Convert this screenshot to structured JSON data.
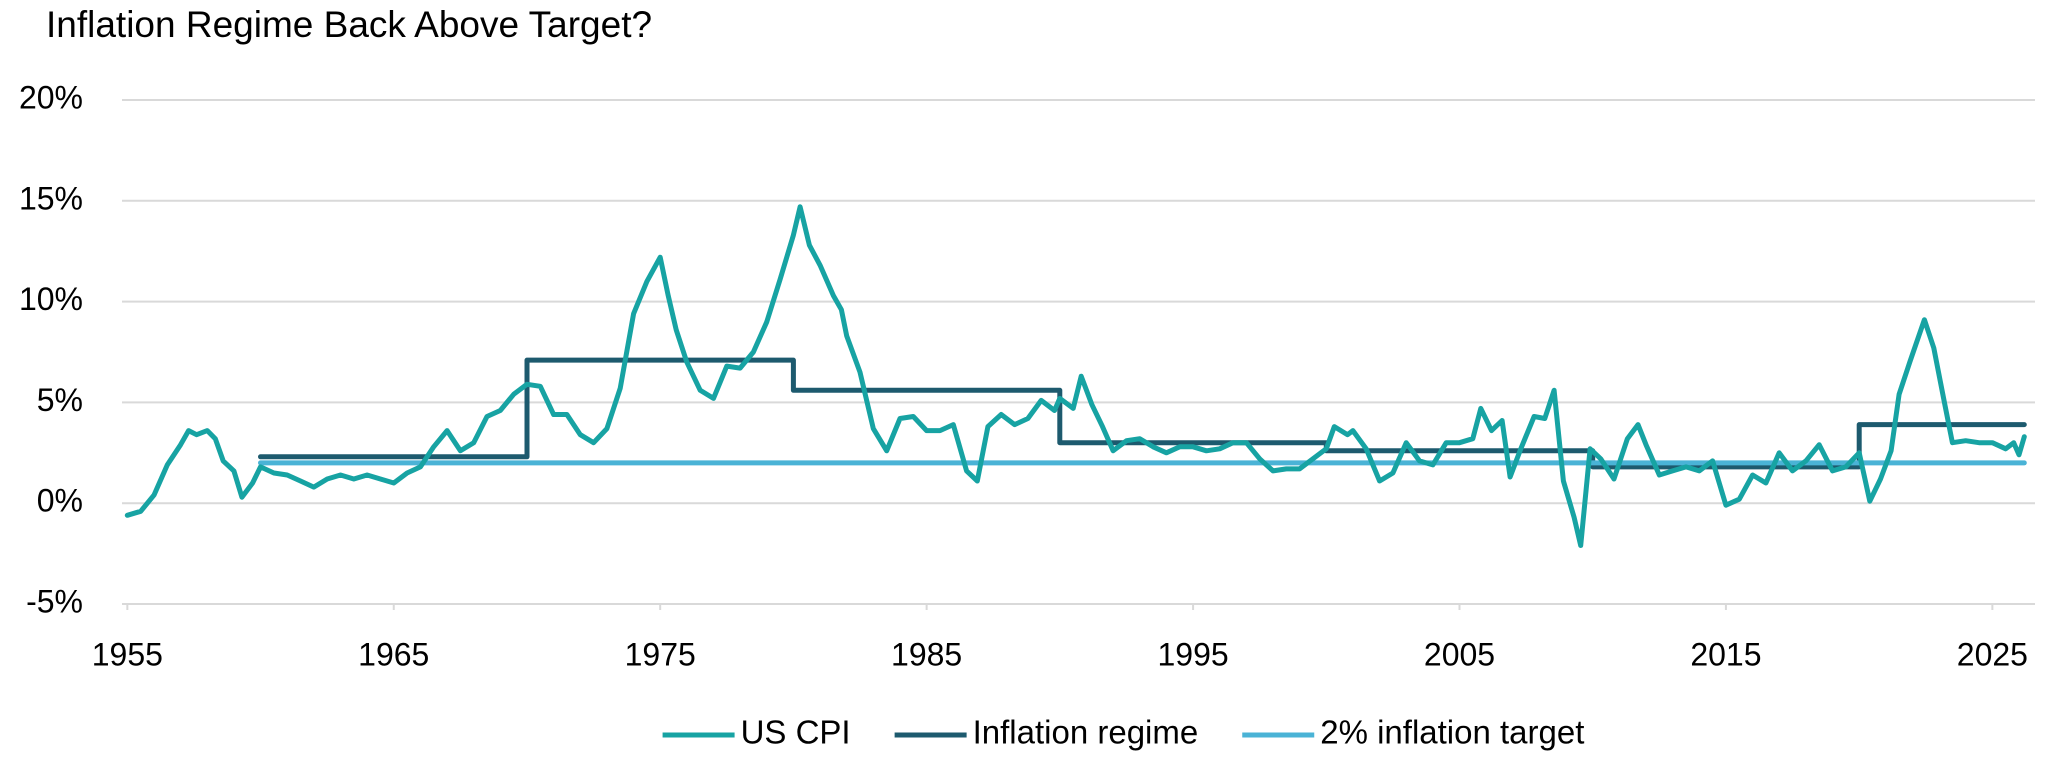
{
  "chart_data": {
    "type": "line",
    "title": "Inflation Regime Back Above Target?",
    "xlim": [
      1954.8,
      2026.6
    ],
    "xticks": [
      1955,
      1965,
      1975,
      1985,
      1995,
      2005,
      2015,
      2025
    ],
    "ylim": [
      -5,
      20
    ],
    "yticks": [
      {
        "value": -5,
        "label": "-5%"
      },
      {
        "value": 0,
        "label": "0%"
      },
      {
        "value": 5,
        "label": "5%"
      },
      {
        "value": 10,
        "label": "10%"
      },
      {
        "value": 15,
        "label": "15%"
      },
      {
        "value": 20,
        "label": "20%"
      }
    ],
    "grid": true,
    "legend": "bottom",
    "series": [
      {
        "name": "US CPI",
        "color": "#17a3a3",
        "x": [
          1955.0,
          1955.5,
          1956.0,
          1956.5,
          1957.0,
          1957.3,
          1957.6,
          1958.0,
          1958.3,
          1958.6,
          1959.0,
          1959.3,
          1959.7,
          1960.0,
          1960.5,
          1961.0,
          1961.5,
          1962.0,
          1962.5,
          1963.0,
          1963.5,
          1964.0,
          1964.5,
          1965.0,
          1965.5,
          1966.0,
          1966.5,
          1967.0,
          1967.5,
          1968.0,
          1968.5,
          1969.0,
          1969.5,
          1970.0,
          1970.5,
          1971.0,
          1971.5,
          1972.0,
          1972.5,
          1973.0,
          1973.5,
          1974.0,
          1974.5,
          1975.0,
          1975.3,
          1975.6,
          1976.0,
          1976.5,
          1977.0,
          1977.5,
          1978.0,
          1978.5,
          1979.0,
          1979.5,
          1980.0,
          1980.25,
          1980.6,
          1981.0,
          1981.5,
          1981.8,
          1982.0,
          1982.5,
          1983.0,
          1983.5,
          1984.0,
          1984.5,
          1985.0,
          1985.5,
          1986.0,
          1986.5,
          1986.9,
          1987.3,
          1987.8,
          1988.3,
          1988.8,
          1989.3,
          1989.8,
          1990.0,
          1990.5,
          1990.8,
          1991.2,
          1991.6,
          1992.0,
          1992.5,
          1993.0,
          1993.5,
          1994.0,
          1994.5,
          1995.0,
          1995.5,
          1996.0,
          1996.5,
          1997.0,
          1997.5,
          1998.0,
          1998.5,
          1999.0,
          1999.5,
          2000.0,
          2000.3,
          2000.8,
          2001.0,
          2001.5,
          2002.0,
          2002.5,
          2003.0,
          2003.5,
          2004.0,
          2004.5,
          2005.0,
          2005.5,
          2005.8,
          2006.2,
          2006.6,
          2006.9,
          2007.3,
          2007.8,
          2008.2,
          2008.55,
          2008.9,
          2009.3,
          2009.55,
          2009.9,
          2010.3,
          2010.8,
          2011.3,
          2011.7,
          2012.0,
          2012.5,
          2013.0,
          2013.5,
          2014.0,
          2014.5,
          2015.0,
          2015.5,
          2016.0,
          2016.5,
          2017.0,
          2017.5,
          2018.0,
          2018.5,
          2019.0,
          2019.5,
          2020.0,
          2020.4,
          2020.8,
          2021.2,
          2021.5,
          2021.9,
          2022.45,
          2022.8,
          2023.2,
          2023.5,
          2024.0,
          2024.5,
          2025.0,
          2025.5,
          2025.8,
          2026.0,
          2026.2
        ],
        "values": [
          -0.6,
          -0.4,
          0.4,
          1.9,
          2.9,
          3.6,
          3.4,
          3.6,
          3.2,
          2.1,
          1.6,
          0.3,
          1.0,
          1.8,
          1.5,
          1.4,
          1.1,
          0.8,
          1.2,
          1.4,
          1.2,
          1.4,
          1.2,
          1.0,
          1.5,
          1.8,
          2.8,
          3.6,
          2.6,
          3.0,
          4.3,
          4.6,
          5.4,
          5.9,
          5.8,
          4.4,
          4.4,
          3.4,
          3.0,
          3.7,
          5.7,
          9.4,
          11.0,
          12.2,
          10.3,
          8.6,
          7.0,
          5.6,
          5.2,
          6.8,
          6.7,
          7.5,
          9.0,
          11.1,
          13.3,
          14.7,
          12.8,
          11.8,
          10.3,
          9.6,
          8.3,
          6.5,
          3.7,
          2.6,
          4.2,
          4.3,
          3.6,
          3.6,
          3.9,
          1.6,
          1.1,
          3.8,
          4.4,
          3.9,
          4.2,
          5.1,
          4.6,
          5.2,
          4.7,
          6.3,
          4.9,
          3.8,
          2.6,
          3.1,
          3.2,
          2.8,
          2.5,
          2.8,
          2.8,
          2.6,
          2.7,
          3.0,
          3.0,
          2.2,
          1.6,
          1.7,
          1.7,
          2.2,
          2.7,
          3.8,
          3.4,
          3.6,
          2.7,
          1.1,
          1.5,
          3.0,
          2.1,
          1.9,
          3.0,
          3.0,
          3.2,
          4.7,
          3.6,
          4.1,
          1.3,
          2.7,
          4.3,
          4.2,
          5.6,
          1.1,
          -0.7,
          -2.1,
          2.7,
          2.2,
          1.2,
          3.2,
          3.9,
          2.9,
          1.4,
          1.6,
          1.8,
          1.6,
          2.1,
          -0.1,
          0.2,
          1.4,
          1.0,
          2.5,
          1.6,
          2.1,
          2.9,
          1.6,
          1.8,
          2.5,
          0.1,
          1.2,
          2.6,
          5.4,
          7.0,
          9.1,
          7.7,
          5.0,
          3.0,
          3.1,
          3.0,
          3.0,
          2.7,
          3.0,
          2.4,
          3.3
        ]
      },
      {
        "name": "Inflation regime",
        "color": "#1d5a6e",
        "x": [
          1960,
          1970,
          1970,
          1980,
          1980,
          1990,
          1990,
          2000,
          2000,
          2010,
          2010,
          2020,
          2020,
          2026.2
        ],
        "values": [
          2.3,
          2.3,
          7.1,
          7.1,
          5.6,
          5.6,
          3.0,
          3.0,
          2.6,
          2.6,
          1.8,
          1.8,
          3.9,
          3.9
        ]
      },
      {
        "name": "2% inflation target",
        "color": "#4ab3d6",
        "x": [
          1960,
          2026.2
        ],
        "values": [
          2,
          2
        ]
      }
    ]
  }
}
